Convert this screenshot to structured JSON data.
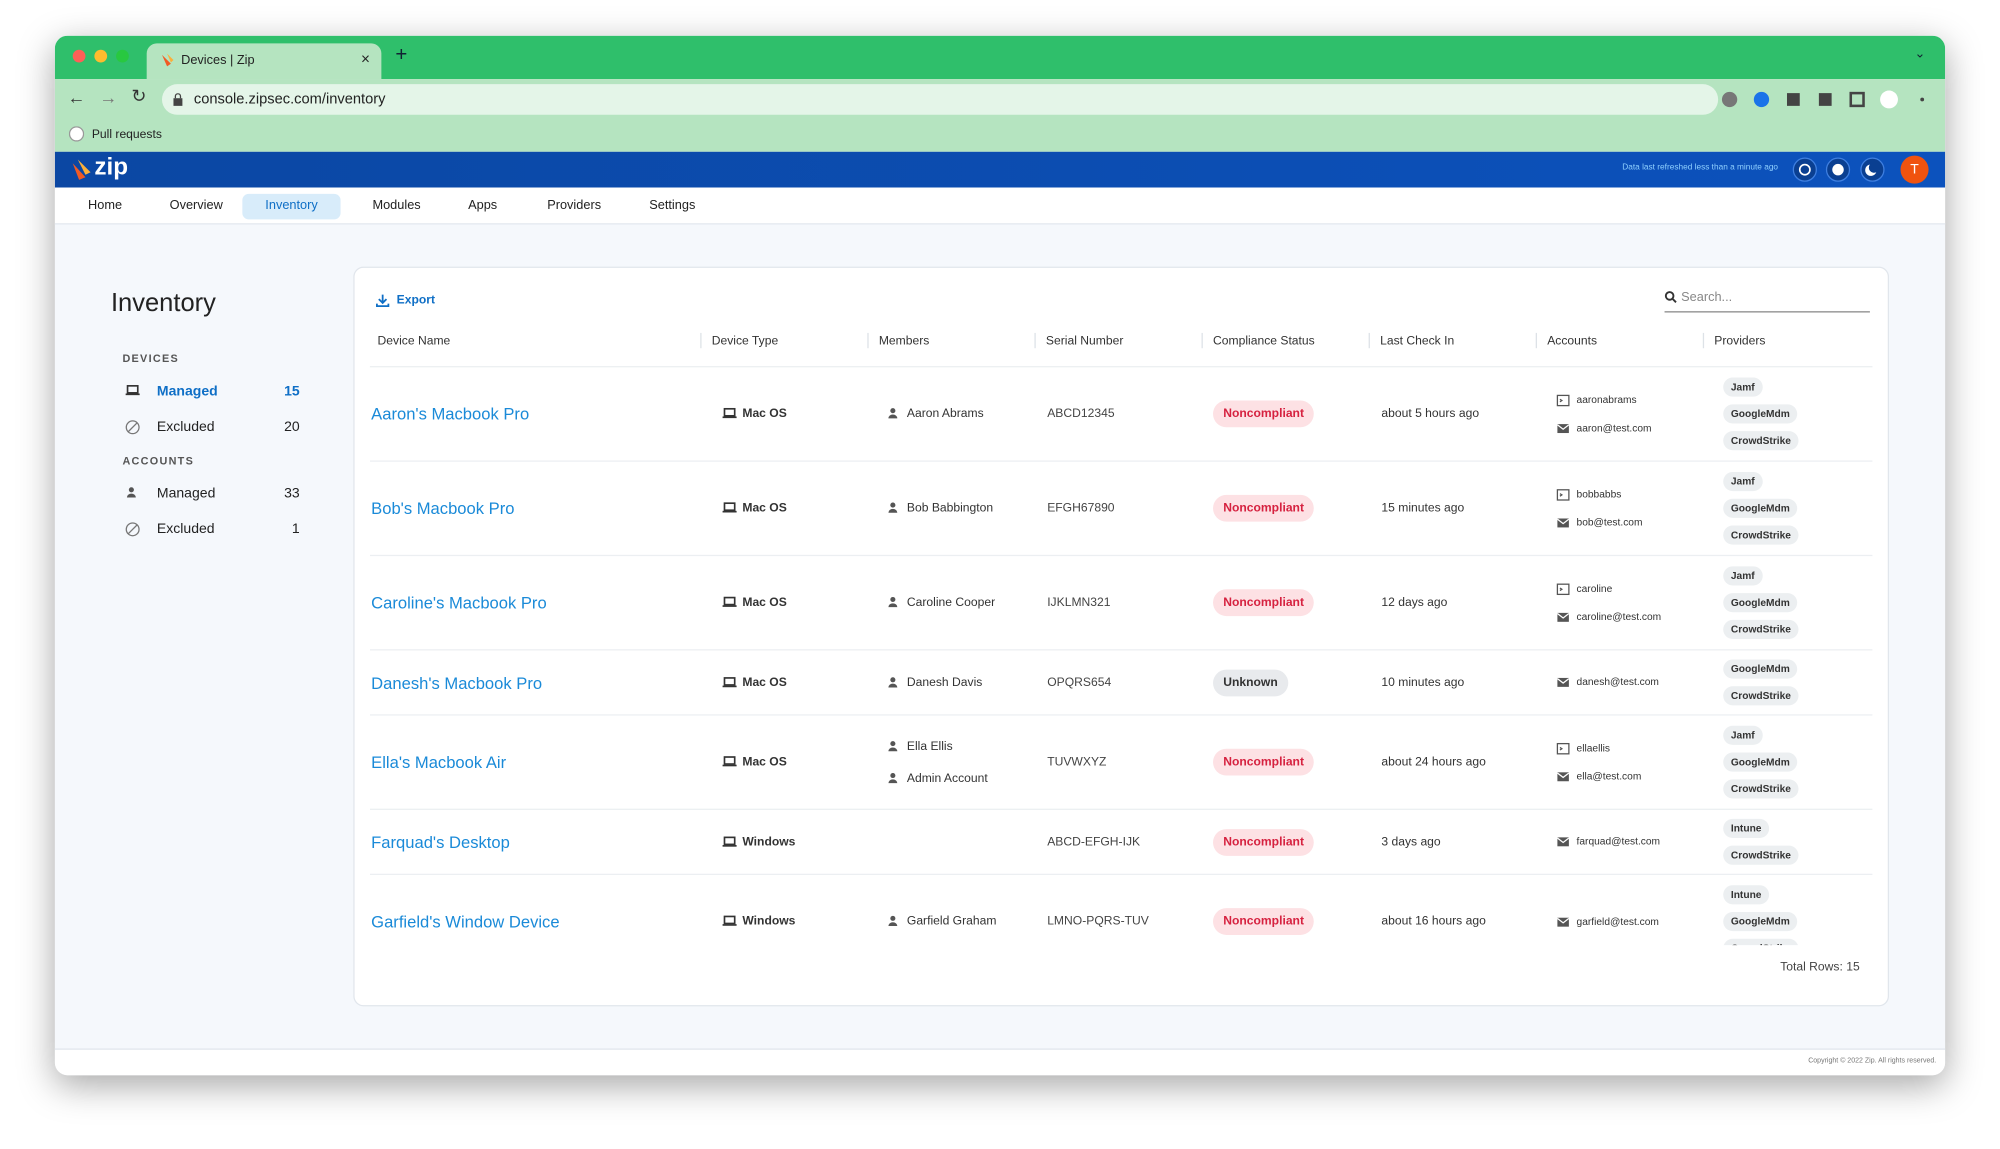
{
  "browser": {
    "tab_title": "Devices | Zip",
    "url": "console.zipsec.com/inventory",
    "bookmarks": [
      "Pull requests"
    ]
  },
  "header": {
    "brand": "zip",
    "refresh_status": "Data last refreshed less than a minute ago",
    "avatar": "T"
  },
  "nav": {
    "items": [
      {
        "label": "Home"
      },
      {
        "label": "Overview"
      },
      {
        "label": "Inventory",
        "active": true
      },
      {
        "label": "Modules"
      },
      {
        "label": "Apps"
      },
      {
        "label": "Providers"
      },
      {
        "label": "Settings"
      }
    ]
  },
  "sidebar": {
    "title": "Inventory",
    "sections": [
      {
        "heading": "DEVICES",
        "items": [
          {
            "label": "Managed",
            "count": 15,
            "active": true
          },
          {
            "label": "Excluded",
            "count": 20
          }
        ]
      },
      {
        "heading": "ACCOUNTS",
        "items": [
          {
            "label": "Managed",
            "count": 33
          },
          {
            "label": "Excluded",
            "count": 1
          }
        ]
      }
    ]
  },
  "toolbar": {
    "export": "Export",
    "search_placeholder": "Search..."
  },
  "table": {
    "columns": [
      "Device Name",
      "Device Type",
      "Members",
      "Serial Number",
      "Compliance Status",
      "Last Check In",
      "Accounts",
      "Providers"
    ],
    "rows": [
      {
        "device": "Aaron's Macbook Pro",
        "type": "Mac OS",
        "members": [
          "Aaron Abrams"
        ],
        "serial": "ABCD12345",
        "status": {
          "label": "Noncompliant",
          "tone": "danger"
        },
        "last_check_in": "about 5 hours ago",
        "accounts": [
          "aaronabrams",
          "aaron@test.com"
        ],
        "providers": [
          "Jamf",
          "GoogleMdm",
          "CrowdStrike"
        ]
      },
      {
        "device": "Bob's Macbook Pro",
        "type": "Mac OS",
        "members": [
          "Bob Babbington"
        ],
        "serial": "EFGH67890",
        "status": {
          "label": "Noncompliant",
          "tone": "danger"
        },
        "last_check_in": "15 minutes ago",
        "accounts": [
          "bobbabbs",
          "bob@test.com"
        ],
        "providers": [
          "Jamf",
          "GoogleMdm",
          "CrowdStrike"
        ]
      },
      {
        "device": "Caroline's Macbook Pro",
        "type": "Mac OS",
        "members": [
          "Caroline Cooper"
        ],
        "serial": "IJKLMN321",
        "status": {
          "label": "Noncompliant",
          "tone": "danger"
        },
        "last_check_in": "12 days ago",
        "accounts": [
          "caroline",
          "caroline@test.com"
        ],
        "providers": [
          "Jamf",
          "GoogleMdm",
          "CrowdStrike"
        ]
      },
      {
        "device": "Danesh's Macbook Pro",
        "type": "Mac OS",
        "members": [
          "Danesh Davis"
        ],
        "serial": "OPQRS654",
        "status": {
          "label": "Unknown",
          "tone": "neutral"
        },
        "last_check_in": "10 minutes ago",
        "accounts": [
          "danesh@test.com"
        ],
        "providers": [
          "GoogleMdm",
          "CrowdStrike"
        ]
      },
      {
        "device": "Ella's Macbook Air",
        "type": "Mac OS",
        "members": [
          "Ella Ellis",
          "Admin Account"
        ],
        "serial": "TUVWXYZ",
        "status": {
          "label": "Noncompliant",
          "tone": "danger"
        },
        "last_check_in": "about 24 hours ago",
        "accounts": [
          "ellaellis",
          "ella@test.com"
        ],
        "providers": [
          "Jamf",
          "GoogleMdm",
          "CrowdStrike"
        ]
      },
      {
        "device": "Farquad's Desktop",
        "type": "Windows",
        "members": [],
        "serial": "ABCD-EFGH-IJK",
        "status": {
          "label": "Noncompliant",
          "tone": "danger"
        },
        "last_check_in": "3 days ago",
        "accounts": [
          "farquad@test.com"
        ],
        "providers": [
          "Intune",
          "CrowdStrike"
        ]
      },
      {
        "device": "Garfield's Window Device",
        "type": "Windows",
        "members": [
          "Garfield Graham"
        ],
        "serial": "LMNO-PQRS-TUV",
        "status": {
          "label": "Noncompliant",
          "tone": "danger"
        },
        "last_check_in": "about 16 hours ago",
        "accounts": [
          "garfield@test.com"
        ],
        "providers": [
          "Intune",
          "GoogleMdm",
          "CrowdStrike"
        ]
      }
    ],
    "total_rows": "Total Rows: 15"
  },
  "footer": {
    "copyright": "Copyright © 2022 Zip. All rights reserved."
  }
}
